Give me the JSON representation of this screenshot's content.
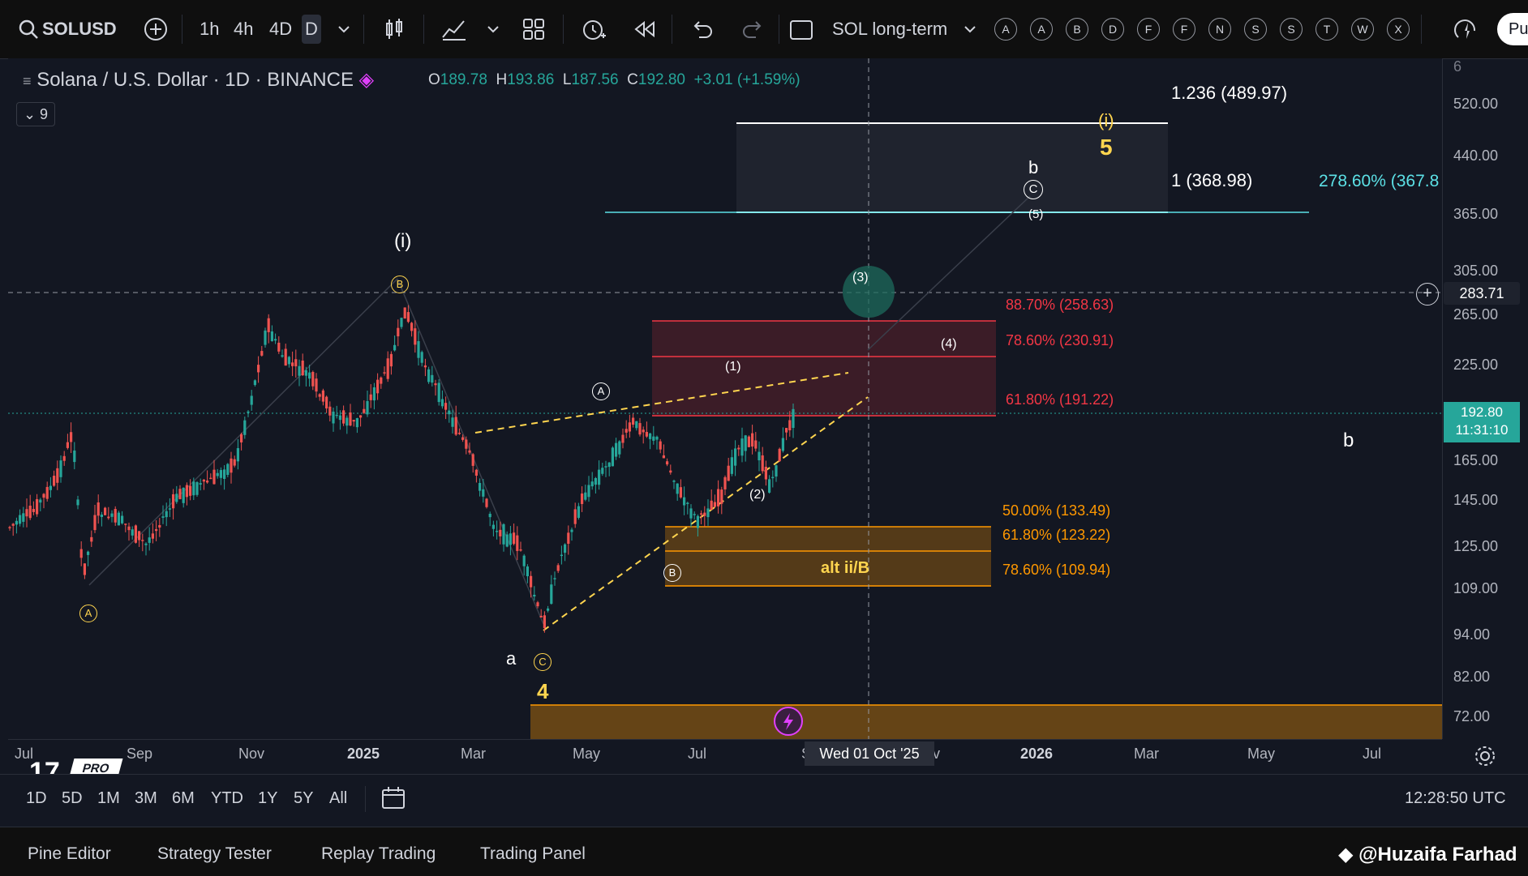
{
  "toolbar": {
    "symbol": "SOLUSD",
    "intervals": [
      "1h",
      "4h",
      "4D",
      "D"
    ],
    "active_interval": "D",
    "layout_name": "SOL long-term",
    "tool_letters": [
      "A",
      "A",
      "B",
      "D",
      "F",
      "F",
      "N",
      "S",
      "S",
      "T",
      "W",
      "X"
    ],
    "publish_label": "Pu"
  },
  "legend": {
    "title": "Solana / U.S. Dollar · 1D · BINANCE",
    "open_label": "O",
    "open": "189.78",
    "high_label": "H",
    "high": "193.86",
    "low_label": "L",
    "low": "187.56",
    "close_label": "C",
    "close": "192.80",
    "change": "+3.01 (+1.59%)",
    "indicators_count": "9"
  },
  "price_axis": {
    "labels": [
      "520.00",
      "440.00",
      "365.00",
      "305.00",
      "265.00",
      "225.00",
      "165.00",
      "145.00",
      "125.00",
      "109.00",
      "94.00",
      "82.00",
      "72.00"
    ],
    "current_price": "192.80",
    "countdown": "11:31:10",
    "crosshair_price": "283.71",
    "top_partial": "6"
  },
  "time_axis": {
    "labels": [
      "Jul",
      "Sep",
      "Nov",
      "2025",
      "Mar",
      "May",
      "Jul",
      "S",
      "v",
      "2026",
      "Mar",
      "May",
      "Jul"
    ],
    "crosshair_date": "Wed 01 Oct '25"
  },
  "annotations": {
    "fib_ext_1236": "1.236 (489.97)",
    "fib_ext_1": "1 (368.98)",
    "fib_ext_2786": "278.60% (367.8",
    "fib_887": "88.70% (258.63)",
    "fib_786_red": "78.60% (230.91)",
    "fib_618_red": "61.80% (191.22)",
    "fib_50": "50.00% (133.49)",
    "fib_618_orange": "61.80% (123.22)",
    "fib_786_orange": "78.60% (109.94)",
    "alt_label": "alt ii/B",
    "wave_i_white": "(i)",
    "wave_i_yellow": "(i)",
    "wave_5": "5",
    "wave_b_top": "b",
    "wave_C_top": "C",
    "wave_5_small": "(5)",
    "wave_3": "(3)",
    "wave_4": "(4)",
    "wave_1": "(1)",
    "wave_2": "(2)",
    "wave_A_circle": "A",
    "wave_B_circle_top": "B",
    "wave_A_circle_yellow": "A",
    "wave_B_circle_white": "B",
    "wave_a": "a",
    "wave_C_yellow": "C",
    "wave_4_yellow": "4",
    "wave_b_right": "b",
    "logo_pro": "PRO"
  },
  "range_bar": {
    "items": [
      "1D",
      "5D",
      "1M",
      "3M",
      "6M",
      "YTD",
      "1Y",
      "5Y",
      "All"
    ],
    "clock": "12:28:50 UTC"
  },
  "bottom_tabs": {
    "items": [
      "Pine Editor",
      "Strategy Tester",
      "Replay Trading",
      "Trading Panel"
    ],
    "watermark": "@Huzaifa Farhad"
  },
  "colors": {
    "up": "#26a69a",
    "down": "#ef5350",
    "fib_red": "#f23645",
    "fib_orange": "#ff9800",
    "fib_cyan": "#5ce1e6",
    "wave_yellow": "#ffd54f"
  }
}
